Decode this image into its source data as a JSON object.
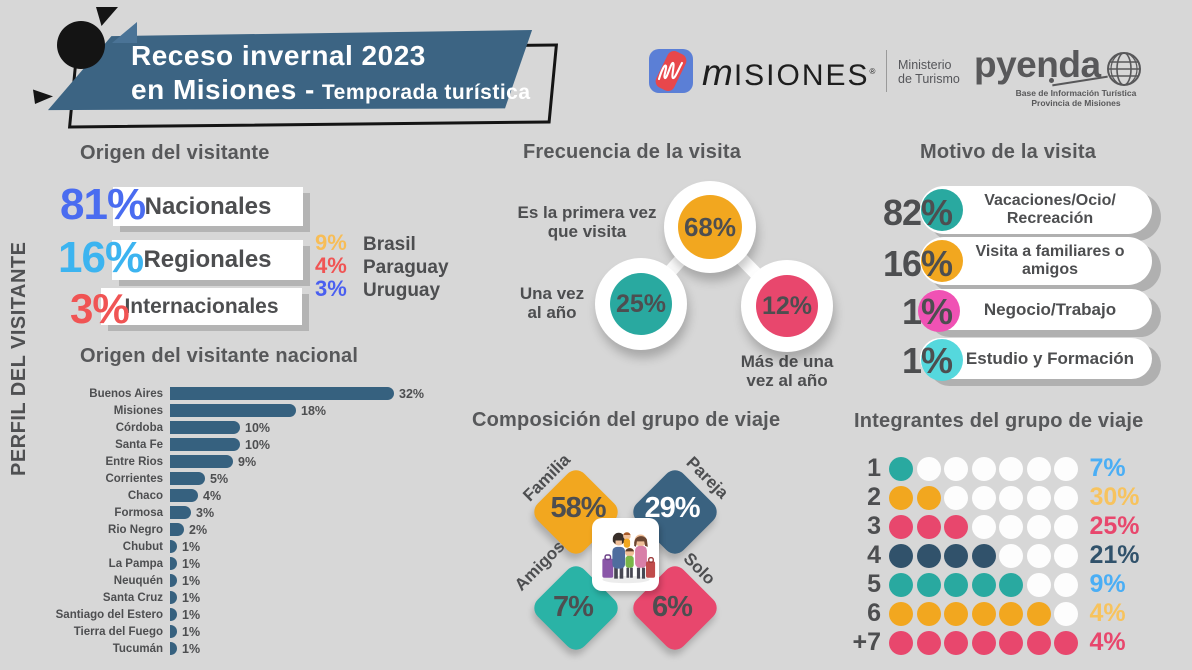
{
  "palette": {
    "bg": "#d7d7d7",
    "ink": "#4d4e50",
    "title": "#57585a",
    "banner": "#3c6483",
    "bar_blue": "#36617f",
    "teal": "#29a9a0",
    "orange": "#f2a71f",
    "pink": "#e8476d",
    "navy": "#31526b",
    "empty_dot": "#fdfdfd"
  },
  "header": {
    "title_line1": "Receso invernal 2023",
    "title_line2": "en Misiones -",
    "title_line2_tail": "Temporada turística"
  },
  "logos": {
    "misiones": {
      "wordmark_initial": "m",
      "wordmark_rest": "ISIONES",
      "trademark": "®",
      "ministry_line1": "Ministerio",
      "ministry_line2": "de Turismo"
    },
    "pyenda": {
      "wordmark": "pyenda",
      "tagline_line1": "Base de Información Turística",
      "tagline_line2": "Provincia de Misiones"
    }
  },
  "sidebar": {
    "label": "PERFIL DEL VISITANTE"
  },
  "origin": {
    "title": "Origen del visitante",
    "items": [
      {
        "value": "81%",
        "label": "Nacionales",
        "color": "#4a6cf0"
      },
      {
        "value": "16%",
        "label": "Regionales",
        "color": "#3cb4f0"
      },
      {
        "value": "3%",
        "label": "Internacionales",
        "color": "#f05454"
      }
    ],
    "regional_breakdown": [
      {
        "value": "9%",
        "label": "Brasil",
        "color": "#f7bd57"
      },
      {
        "value": "4%",
        "label": "Paraguay",
        "color": "#f05454"
      },
      {
        "value": "3%",
        "label": "Uruguay",
        "color": "#4a5ff0"
      }
    ]
  },
  "national_origin": {
    "title": "Origen del visitante nacional",
    "rows": [
      {
        "label": "Buenos Aires",
        "value": 32,
        "display": "32%"
      },
      {
        "label": "Misiones",
        "value": 18,
        "display": "18%"
      },
      {
        "label": "Córdoba",
        "value": 10,
        "display": "10%"
      },
      {
        "label": "Santa Fe",
        "value": 10,
        "display": "10%"
      },
      {
        "label": "Entre Rios",
        "value": 9,
        "display": "9%"
      },
      {
        "label": "Corrientes",
        "value": 5,
        "display": "5%"
      },
      {
        "label": "Chaco",
        "value": 4,
        "display": "4%"
      },
      {
        "label": "Formosa",
        "value": 3,
        "display": "3%"
      },
      {
        "label": "Rio Negro",
        "value": 2,
        "display": "2%"
      },
      {
        "label": "Chubut",
        "value": 1,
        "display": "1%"
      },
      {
        "label": "La Pampa",
        "value": 1,
        "display": "1%"
      },
      {
        "label": "Neuquén",
        "value": 1,
        "display": "1%"
      },
      {
        "label": "Santa Cruz",
        "value": 1,
        "display": "1%"
      },
      {
        "label": "Santiago del Estero",
        "value": 1,
        "display": "1%"
      },
      {
        "label": "Tierra del Fuego",
        "value": 1,
        "display": "1%"
      },
      {
        "label": "Tucumán",
        "value": 1,
        "display": "1%"
      }
    ]
  },
  "frequency": {
    "title": "Frecuencia de la visita",
    "items": [
      {
        "value": "68%",
        "line1": "Es la primera vez",
        "line2": "que visita",
        "color": "#f2a71f"
      },
      {
        "value": "25%",
        "line1": "Una vez",
        "line2": "al año",
        "color": "#29a9a0"
      },
      {
        "value": "12%",
        "line1": "Más de una",
        "line2": "vez al año",
        "color": "#e8476d"
      }
    ]
  },
  "motive": {
    "title": "Motivo de la visita",
    "items": [
      {
        "value": "82%",
        "line1": "Vacaciones/Ocio/",
        "line2": "Recreación",
        "color": "#29a9a0"
      },
      {
        "value": "16%",
        "line1": "Visita a familiares o",
        "line2": "amigos",
        "color": "#f2a71f"
      },
      {
        "value": "1%",
        "line1": "Negocio/Trabajo",
        "line2": "",
        "color": "#f052b4"
      },
      {
        "value": "1%",
        "line1": "Estudio y Formación",
        "line2": "",
        "color": "#55d8dd"
      }
    ]
  },
  "composition": {
    "title": "Composición del grupo de viaje",
    "items": [
      {
        "label": "Familia",
        "value": "58%",
        "color": "#f2a71f",
        "value_color": "#4d4e50"
      },
      {
        "label": "Pareja",
        "value": "29%",
        "color": "#3a6280",
        "value_color": "#ffffff"
      },
      {
        "label": "Amigos",
        "value": "7%",
        "color": "#2ab3a6",
        "value_color": "#4d4e50"
      },
      {
        "label": "Solo",
        "value": "6%",
        "color": "#e8476d",
        "value_color": "#4d4e50"
      }
    ]
  },
  "members": {
    "title": "Integrantes del grupo de viaje",
    "dots_per_row": 7,
    "rows": [
      {
        "label": "1",
        "filled": 1,
        "color": "teal",
        "value": "7%",
        "value_color": "#4aaef5"
      },
      {
        "label": "2",
        "filled": 2,
        "color": "orange",
        "value": "30%",
        "value_color": "#f7c35e"
      },
      {
        "label": "3",
        "filled": 3,
        "color": "pink",
        "value": "25%",
        "value_color": "#e8476d"
      },
      {
        "label": "4",
        "filled": 4,
        "color": "navy",
        "value": "21%",
        "value_color": "#31526b"
      },
      {
        "label": "5",
        "filled": 5,
        "color": "teal",
        "value": "9%",
        "value_color": "#4aaef5"
      },
      {
        "label": "6",
        "filled": 6,
        "color": "orange",
        "value": "4%",
        "value_color": "#f7c35e"
      },
      {
        "label": "+7",
        "filled": 7,
        "color": "pink",
        "value": "4%",
        "value_color": "#e8476d"
      }
    ]
  },
  "chart_data": [
    {
      "type": "bar",
      "title": "Origen del visitante",
      "categories": [
        "Nacionales",
        "Regionales",
        "Internacionales"
      ],
      "values": [
        81,
        16,
        3
      ],
      "unit": "%"
    },
    {
      "type": "bar",
      "title": "Origen del visitante regional",
      "categories": [
        "Brasil",
        "Paraguay",
        "Uruguay"
      ],
      "values": [
        9,
        4,
        3
      ],
      "unit": "%"
    },
    {
      "type": "pie",
      "title": "Frecuencia de la visita",
      "categories": [
        "Es la primera vez que visita",
        "Una vez al año",
        "Más de una vez al año"
      ],
      "values": [
        68,
        25,
        12
      ],
      "unit": "%"
    },
    {
      "type": "bar",
      "title": "Motivo de la visita",
      "categories": [
        "Vacaciones/Ocio/Recreación",
        "Visita a familiares o amigos",
        "Negocio/Trabajo",
        "Estudio y Formación"
      ],
      "values": [
        82,
        16,
        1,
        1
      ],
      "unit": "%"
    },
    {
      "type": "bar",
      "title": "Origen del visitante nacional",
      "categories": [
        "Buenos Aires",
        "Misiones",
        "Córdoba",
        "Santa Fe",
        "Entre Rios",
        "Corrientes",
        "Chaco",
        "Formosa",
        "Rio Negro",
        "Chubut",
        "La Pampa",
        "Neuquén",
        "Santa Cruz",
        "Santiago del Estero",
        "Tierra del Fuego",
        "Tucumán"
      ],
      "values": [
        32,
        18,
        10,
        10,
        9,
        5,
        4,
        3,
        2,
        1,
        1,
        1,
        1,
        1,
        1,
        1
      ],
      "unit": "%",
      "xlim": [
        0,
        32
      ]
    },
    {
      "type": "pie",
      "title": "Composición del grupo de viaje",
      "categories": [
        "Familia",
        "Pareja",
        "Amigos",
        "Solo"
      ],
      "values": [
        58,
        29,
        7,
        6
      ],
      "unit": "%"
    },
    {
      "type": "bar",
      "title": "Integrantes del grupo de viaje",
      "categories": [
        "1",
        "2",
        "3",
        "4",
        "5",
        "6",
        "+7"
      ],
      "values": [
        7,
        30,
        25,
        21,
        9,
        4,
        4
      ],
      "unit": "%"
    }
  ]
}
